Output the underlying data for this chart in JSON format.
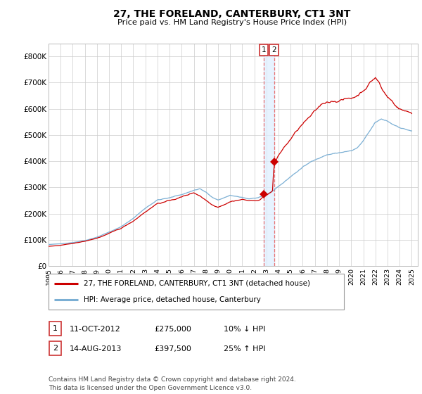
{
  "title": "27, THE FORELAND, CANTERBURY, CT1 3NT",
  "subtitle": "Price paid vs. HM Land Registry's House Price Index (HPI)",
  "ylabel_ticks": [
    "£0",
    "£100K",
    "£200K",
    "£300K",
    "£400K",
    "£500K",
    "£600K",
    "£700K",
    "£800K"
  ],
  "ytick_values": [
    0,
    100000,
    200000,
    300000,
    400000,
    500000,
    600000,
    700000,
    800000
  ],
  "ylim": [
    0,
    850000
  ],
  "xlim_start": 1995.0,
  "xlim_end": 2025.5,
  "red_line_color": "#cc0000",
  "blue_line_color": "#7bafd4",
  "vline_color": "#e87070",
  "vband_color": "#ddeeff",
  "purchase1_x": 2012.79,
  "purchase1_y": 275000,
  "purchase2_x": 2013.62,
  "purchase2_y": 397500,
  "legend_label1": "27, THE FORELAND, CANTERBURY, CT1 3NT (detached house)",
  "legend_label2": "HPI: Average price, detached house, Canterbury",
  "annotation1_num": "1",
  "annotation1_date": "11-OCT-2012",
  "annotation1_price": "£275,000",
  "annotation1_hpi": "10% ↓ HPI",
  "annotation2_num": "2",
  "annotation2_date": "14-AUG-2013",
  "annotation2_price": "£397,500",
  "annotation2_hpi": "25% ↑ HPI",
  "footnote": "Contains HM Land Registry data © Crown copyright and database right 2024.\nThis data is licensed under the Open Government Licence v3.0.",
  "xtick_years": [
    1995,
    1996,
    1997,
    1998,
    1999,
    2000,
    2001,
    2002,
    2003,
    2004,
    2005,
    2006,
    2007,
    2008,
    2009,
    2010,
    2011,
    2012,
    2013,
    2014,
    2015,
    2016,
    2017,
    2018,
    2019,
    2020,
    2021,
    2022,
    2023,
    2024,
    2025
  ]
}
